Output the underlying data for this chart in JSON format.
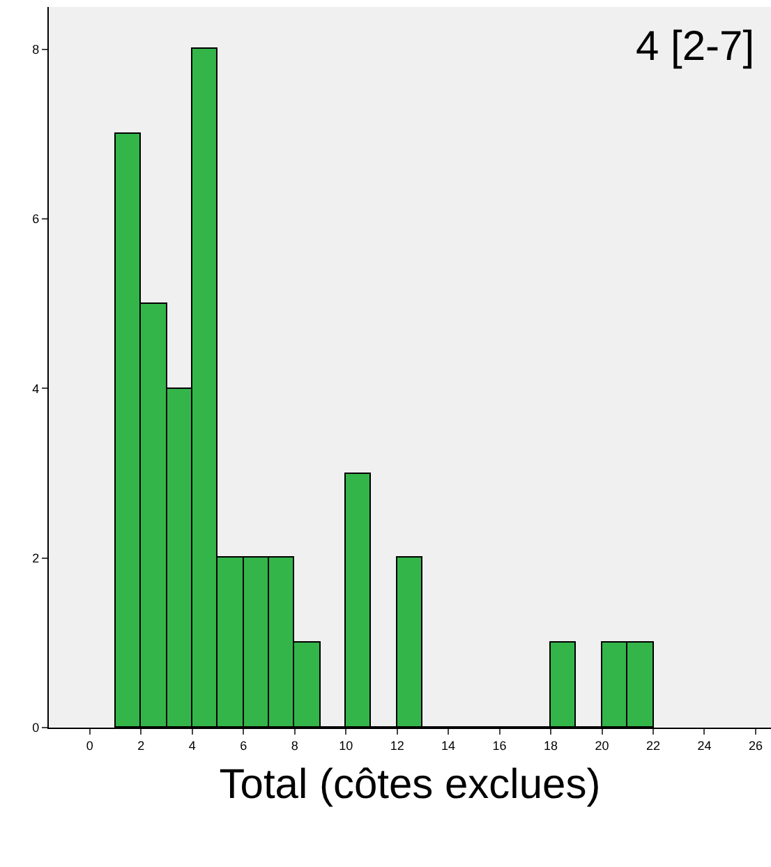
{
  "chart_data": {
    "type": "histogram",
    "xlabel": "Total (côtes exclues)",
    "annotations": [
      "4 [2-7]"
    ],
    "bins": [
      1,
      2,
      3,
      4,
      5,
      6,
      7,
      8,
      9,
      10,
      11,
      12,
      13,
      14,
      15,
      16,
      17,
      18,
      19,
      20,
      21,
      22
    ],
    "values": [
      7,
      5,
      4,
      8,
      2,
      2,
      2,
      1,
      0,
      3,
      0,
      2,
      0,
      0,
      0,
      0,
      0,
      1,
      0,
      1,
      1
    ],
    "color": "#33b54a",
    "xlim": [
      -1.6,
      26.6
    ],
    "xticks": [
      0,
      2,
      4,
      6,
      8,
      10,
      12,
      14,
      16,
      18,
      20,
      22,
      24,
      26
    ],
    "ylim": [
      0,
      8.5
    ],
    "yticks": [
      0,
      2,
      4,
      6,
      8
    ],
    "grid": false
  }
}
